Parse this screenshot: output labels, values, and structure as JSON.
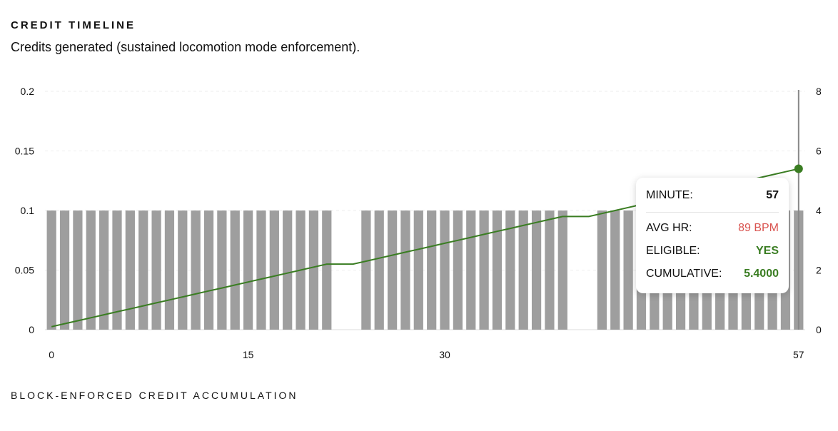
{
  "header": {
    "title": "CREDIT TIMELINE",
    "subtitle": "Credits generated (sustained locomotion mode enforcement)."
  },
  "footer": {
    "title": "BLOCK-ENFORCED CREDIT ACCUMULATION"
  },
  "tooltip": {
    "minute_label": "MINUTE:",
    "minute_value": "57",
    "hr_label": "AVG HR:",
    "hr_value": "89 BPM",
    "eligible_label": "ELIGIBLE:",
    "eligible_value": "YES",
    "cumulative_label": "CUMULATIVE:",
    "cumulative_value": "5.4000"
  },
  "colors": {
    "bar": "#9e9e9e",
    "line": "#3a7d22",
    "grid": "#eeeeee",
    "cursor": "#888888",
    "hr_value": "#d9534f"
  },
  "chart_data": {
    "type": "bar",
    "title": "",
    "x_ticks": [
      0,
      15,
      30,
      57
    ],
    "x_range": [
      0,
      57
    ],
    "y_left_ticks": [
      "0",
      "0.05",
      "0.1",
      "0.15",
      "0.2"
    ],
    "y_left_range": [
      0,
      0.2
    ],
    "y_right_ticks": [
      "0",
      "2",
      "4",
      "6",
      "8"
    ],
    "y_right_range": [
      0,
      8
    ],
    "grid": true,
    "hover_minute": 57,
    "series": [
      {
        "type": "bar",
        "axis": "left",
        "x": [
          0,
          1,
          2,
          3,
          4,
          5,
          6,
          7,
          8,
          9,
          10,
          11,
          12,
          13,
          14,
          15,
          16,
          17,
          18,
          19,
          20,
          21,
          22,
          23,
          24,
          25,
          26,
          27,
          28,
          29,
          30,
          31,
          32,
          33,
          34,
          35,
          36,
          37,
          38,
          39,
          40,
          41,
          42,
          43,
          44,
          45,
          46,
          47,
          48,
          49,
          50,
          51,
          52,
          53,
          54,
          55,
          56,
          57
        ],
        "values": [
          0.1,
          0.1,
          0.1,
          0.1,
          0.1,
          0.1,
          0.1,
          0.1,
          0.1,
          0.1,
          0.1,
          0.1,
          0.1,
          0.1,
          0.1,
          0.1,
          0.1,
          0.1,
          0.1,
          0.1,
          0.1,
          0.1,
          0,
          0,
          0.1,
          0.1,
          0.1,
          0.1,
          0.1,
          0.1,
          0.1,
          0.1,
          0.1,
          0.1,
          0.1,
          0.1,
          0.1,
          0.1,
          0.1,
          0.1,
          0,
          0,
          0.1,
          0.1,
          0.1,
          0.1,
          0.1,
          0.1,
          0.1,
          0.1,
          0.1,
          0.1,
          0.1,
          0.1,
          0.1,
          0.1,
          0.1,
          0.1
        ]
      },
      {
        "type": "line",
        "axis": "right",
        "x": [
          0,
          1,
          2,
          3,
          4,
          5,
          6,
          7,
          8,
          9,
          10,
          11,
          12,
          13,
          14,
          15,
          16,
          17,
          18,
          19,
          20,
          21,
          22,
          23,
          24,
          25,
          26,
          27,
          28,
          29,
          30,
          31,
          32,
          33,
          34,
          35,
          36,
          37,
          38,
          39,
          40,
          41,
          42,
          43,
          44,
          45,
          46,
          47,
          48,
          49,
          50,
          51,
          52,
          53,
          54,
          55,
          56,
          57
        ],
        "values": [
          0.1,
          0.2,
          0.3,
          0.4,
          0.5,
          0.6,
          0.7,
          0.8,
          0.9,
          1.0,
          1.1,
          1.2,
          1.3,
          1.4,
          1.5,
          1.6,
          1.7,
          1.8,
          1.9,
          2.0,
          2.1,
          2.2,
          2.2,
          2.2,
          2.3,
          2.4,
          2.5,
          2.6,
          2.7,
          2.8,
          2.9,
          3.0,
          3.1,
          3.2,
          3.3,
          3.4,
          3.5,
          3.6,
          3.7,
          3.8,
          3.8,
          3.8,
          3.9,
          4.0,
          4.1,
          4.2,
          4.3,
          4.4,
          4.5,
          4.6,
          4.7,
          4.8,
          4.9,
          5.0,
          5.1,
          5.2,
          5.3,
          5.4
        ]
      }
    ]
  }
}
